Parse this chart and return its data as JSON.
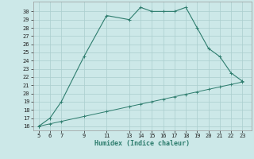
{
  "xlabel": "Humidex (Indice chaleur)",
  "line1_x": [
    5,
    6,
    7,
    9,
    11,
    13,
    14,
    15,
    16,
    17,
    18,
    19,
    20,
    21,
    22,
    23
  ],
  "line1_y": [
    16,
    17,
    19,
    24.5,
    29.5,
    29,
    30.5,
    30,
    30,
    30,
    30.5,
    28,
    25.5,
    24.5,
    22.5,
    21.5
  ],
  "line2_x": [
    5,
    6,
    7,
    9,
    11,
    13,
    14,
    15,
    16,
    17,
    18,
    19,
    20,
    21,
    22,
    23
  ],
  "line2_y": [
    16,
    16.3,
    16.6,
    17.2,
    17.8,
    18.4,
    18.7,
    19.0,
    19.3,
    19.6,
    19.9,
    20.2,
    20.5,
    20.8,
    21.1,
    21.4
  ],
  "line_color": "#2e7d6e",
  "bg_color": "#cce8e8",
  "grid_color": "#aacece",
  "xlim": [
    4.5,
    23.8
  ],
  "ylim": [
    15.5,
    31.2
  ],
  "xticks": [
    5,
    6,
    7,
    9,
    11,
    13,
    14,
    15,
    16,
    17,
    18,
    19,
    20,
    21,
    22,
    23
  ],
  "yticks": [
    16,
    17,
    18,
    19,
    20,
    21,
    22,
    23,
    24,
    25,
    26,
    27,
    28,
    29,
    30
  ],
  "tick_fontsize": 5,
  "xlabel_fontsize": 6
}
